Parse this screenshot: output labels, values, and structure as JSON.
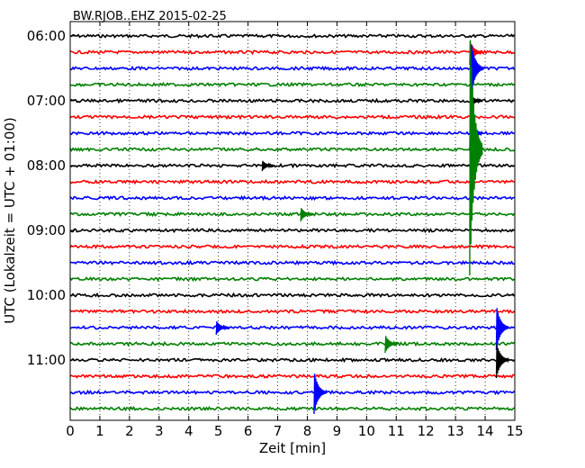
{
  "chart_data": {
    "type": "line",
    "title": "BW.RJOB..EHZ 2015-02-25",
    "xlabel": "Zeit  [min]",
    "ylabel": "UTC (Lokalzeit = UTC + 01:00)",
    "xlim": [
      0,
      15
    ],
    "x_ticks": [
      "0",
      "1",
      "2",
      "3",
      "4",
      "5",
      "6",
      "7",
      "8",
      "9",
      "10",
      "11",
      "12",
      "13",
      "14",
      "15"
    ],
    "y_ticks": [
      "06:00",
      "07:00",
      "08:00",
      "09:00",
      "10:00",
      "11:00"
    ],
    "rows_per_hour": 4,
    "row_count": 24,
    "grid": "vertical dotted",
    "colors": [
      "#000000",
      "#ff0000",
      "#0000ff",
      "#008000"
    ],
    "events": [
      {
        "row": 1,
        "x": 13.6,
        "amp": 14
      },
      {
        "row": 2,
        "x": 13.65,
        "amp": 30
      },
      {
        "row": 4,
        "x": 13.62,
        "amp": 8
      },
      {
        "row": 6,
        "x": 13.6,
        "amp": 20
      },
      {
        "row": 7,
        "x": 13.6,
        "amp": 140
      },
      {
        "row": 8,
        "x": 6.6,
        "amp": 6
      },
      {
        "row": 11,
        "x": 7.9,
        "amp": 8
      },
      {
        "row": 18,
        "x": 5.05,
        "amp": 8
      },
      {
        "row": 18,
        "x": 14.5,
        "amp": 25
      },
      {
        "row": 19,
        "x": 10.75,
        "amp": 10
      },
      {
        "row": 20,
        "x": 14.5,
        "amp": 20
      },
      {
        "row": 22,
        "x": 8.35,
        "amp": 24
      }
    ]
  }
}
